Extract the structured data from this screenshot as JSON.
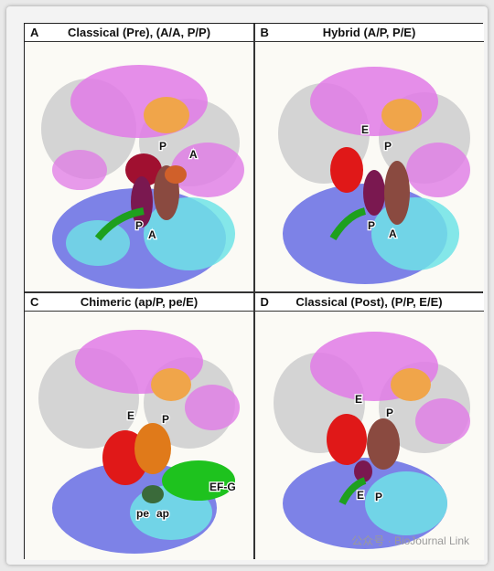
{
  "panels": [
    {
      "letter": "A",
      "title": "Classical (Pre), (A/A, P/P)",
      "labels": [
        "P",
        "A",
        "P",
        "A"
      ]
    },
    {
      "letter": "B",
      "title": "Hybrid (A/P, P/E)",
      "labels": [
        "E",
        "P",
        "P",
        "A"
      ]
    },
    {
      "letter": "C",
      "title": "Chimeric (ap/P, pe/E)",
      "labels": [
        "E",
        "P",
        "EF-G",
        "pe",
        "ap"
      ]
    },
    {
      "letter": "D",
      "title": "Classical (Post), (P/P, E/E)",
      "labels": [
        "E",
        "P",
        "E",
        "P"
      ]
    }
  ],
  "watermark": "公众号 · BioJournal Link",
  "colors": {
    "white_subunit": "#d4d4d4",
    "magenta": "#e07ae6",
    "orange": "#f0a54a",
    "blue": "#6f74e6",
    "cyan": "#6fe3e6",
    "red": "#e01818",
    "green": "#1ec21e",
    "dark_red": "#8c1340"
  }
}
